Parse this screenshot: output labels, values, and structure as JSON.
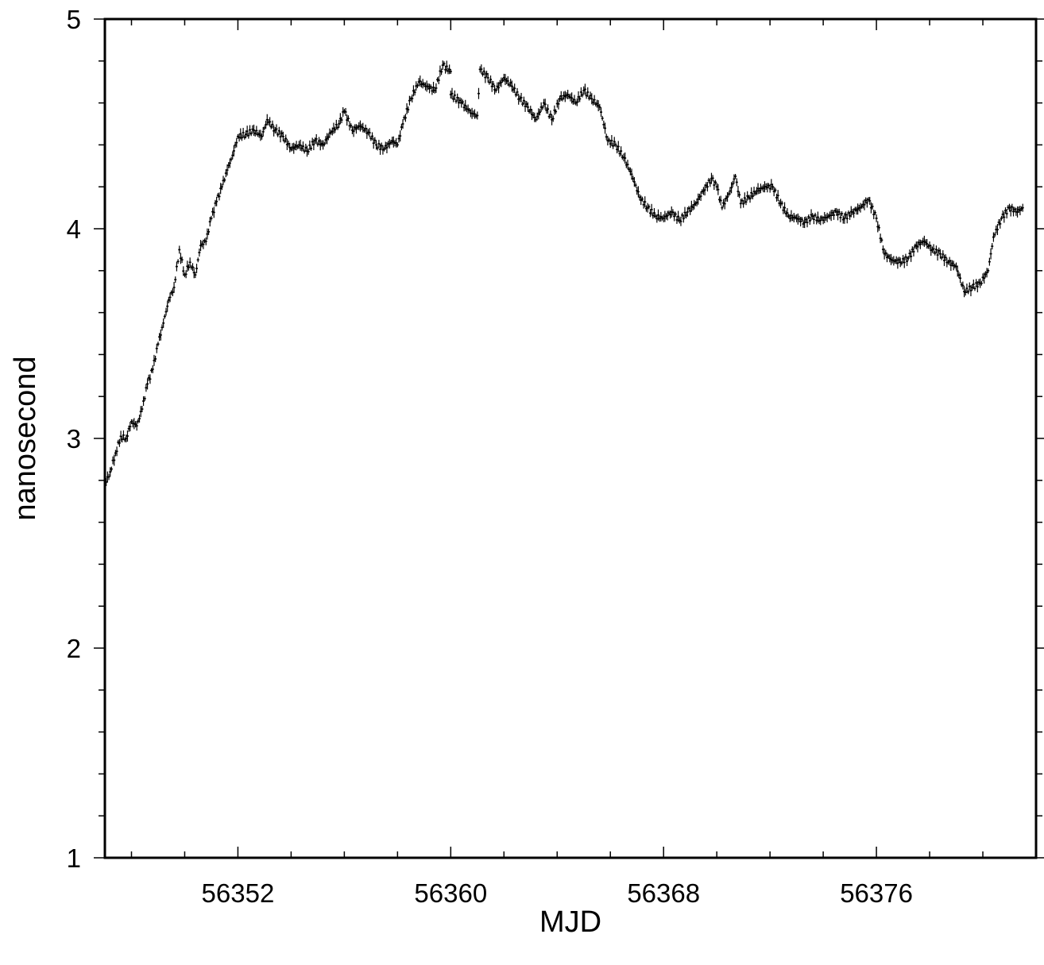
{
  "chart_data": {
    "type": "scatter",
    "title": "",
    "xlabel": "MJD",
    "ylabel": "nanosecond",
    "xlim": [
      56347,
      56382
    ],
    "ylim": [
      1,
      5
    ],
    "xticks": [
      56352,
      56360,
      56368,
      56376
    ],
    "xtick_labels": [
      "56352",
      "56360",
      "56368",
      "56376"
    ],
    "x_minor_step": 2,
    "yticks": [
      1,
      2,
      3,
      4,
      5
    ],
    "ytick_labels": [
      "1",
      "2",
      "3",
      "4",
      "5"
    ],
    "y_minor_step": 0.2,
    "grid": false,
    "marker": "small vertical error-bar ticks",
    "series": [
      {
        "color": "#000000",
        "points": [
          [
            56347.0,
            2.78
          ],
          [
            56347.2,
            2.84
          ],
          [
            56347.4,
            2.93
          ],
          [
            56347.6,
            3.01
          ],
          [
            56347.8,
            3.0
          ],
          [
            56348.0,
            3.08
          ],
          [
            56348.2,
            3.06
          ],
          [
            56348.4,
            3.14
          ],
          [
            56348.6,
            3.26
          ],
          [
            56348.8,
            3.33
          ],
          [
            56349.0,
            3.45
          ],
          [
            56349.2,
            3.55
          ],
          [
            56349.4,
            3.66
          ],
          [
            56349.6,
            3.72
          ],
          [
            56349.8,
            3.9
          ],
          [
            56350.0,
            3.78
          ],
          [
            56350.2,
            3.84
          ],
          [
            56350.4,
            3.78
          ],
          [
            56350.6,
            3.92
          ],
          [
            56350.8,
            3.94
          ],
          [
            56351.0,
            4.05
          ],
          [
            56351.2,
            4.13
          ],
          [
            56351.4,
            4.2
          ],
          [
            56351.6,
            4.28
          ],
          [
            56351.8,
            4.35
          ],
          [
            56352.0,
            4.44
          ],
          [
            56352.3,
            4.45
          ],
          [
            56352.6,
            4.47
          ],
          [
            56352.9,
            4.44
          ],
          [
            56353.1,
            4.52
          ],
          [
            56353.4,
            4.47
          ],
          [
            56353.7,
            4.44
          ],
          [
            56354.0,
            4.38
          ],
          [
            56354.3,
            4.4
          ],
          [
            56354.6,
            4.37
          ],
          [
            56354.9,
            4.42
          ],
          [
            56355.2,
            4.4
          ],
          [
            56355.5,
            4.46
          ],
          [
            56355.8,
            4.5
          ],
          [
            56356.0,
            4.56
          ],
          [
            56356.3,
            4.47
          ],
          [
            56356.6,
            4.49
          ],
          [
            56356.9,
            4.46
          ],
          [
            56357.2,
            4.4
          ],
          [
            56357.5,
            4.38
          ],
          [
            56357.8,
            4.42
          ],
          [
            56358.0,
            4.4
          ],
          [
            56358.2,
            4.5
          ],
          [
            56358.5,
            4.62
          ],
          [
            56358.8,
            4.7
          ],
          [
            56359.1,
            4.68
          ],
          [
            56359.4,
            4.66
          ],
          [
            56359.7,
            4.78
          ],
          [
            56360.0,
            4.75
          ],
          [
            56360.0,
            4.64
          ],
          [
            56360.4,
            4.6
          ],
          [
            56360.8,
            4.55
          ],
          [
            56361.0,
            4.54
          ],
          [
            56361.1,
            4.76
          ],
          [
            56361.4,
            4.72
          ],
          [
            56361.7,
            4.66
          ],
          [
            56362.0,
            4.72
          ],
          [
            56362.3,
            4.68
          ],
          [
            56362.6,
            4.62
          ],
          [
            56362.9,
            4.58
          ],
          [
            56363.2,
            4.52
          ],
          [
            56363.5,
            4.6
          ],
          [
            56363.8,
            4.52
          ],
          [
            56364.1,
            4.62
          ],
          [
            56364.4,
            4.64
          ],
          [
            56364.7,
            4.6
          ],
          [
            56365.0,
            4.66
          ],
          [
            56365.3,
            4.62
          ],
          [
            56365.6,
            4.58
          ],
          [
            56365.9,
            4.42
          ],
          [
            56366.2,
            4.4
          ],
          [
            56366.5,
            4.34
          ],
          [
            56366.8,
            4.26
          ],
          [
            56367.1,
            4.15
          ],
          [
            56367.4,
            4.1
          ],
          [
            56367.7,
            4.06
          ],
          [
            56368.0,
            4.05
          ],
          [
            56368.3,
            4.08
          ],
          [
            56368.6,
            4.04
          ],
          [
            56368.9,
            4.08
          ],
          [
            56369.2,
            4.12
          ],
          [
            56369.5,
            4.18
          ],
          [
            56369.8,
            4.24
          ],
          [
            56370.0,
            4.2
          ],
          [
            56370.2,
            4.1
          ],
          [
            56370.5,
            4.18
          ],
          [
            56370.7,
            4.25
          ],
          [
            56370.9,
            4.12
          ],
          [
            56371.2,
            4.15
          ],
          [
            56371.5,
            4.18
          ],
          [
            56371.8,
            4.2
          ],
          [
            56372.1,
            4.2
          ],
          [
            56372.4,
            4.12
          ],
          [
            56372.7,
            4.06
          ],
          [
            56373.0,
            4.05
          ],
          [
            56373.3,
            4.03
          ],
          [
            56373.6,
            4.06
          ],
          [
            56373.9,
            4.04
          ],
          [
            56374.2,
            4.06
          ],
          [
            56374.5,
            4.08
          ],
          [
            56374.8,
            4.05
          ],
          [
            56375.1,
            4.08
          ],
          [
            56375.4,
            4.1
          ],
          [
            56375.7,
            4.14
          ],
          [
            56376.0,
            4.05
          ],
          [
            56376.3,
            3.88
          ],
          [
            56376.6,
            3.85
          ],
          [
            56376.9,
            3.84
          ],
          [
            56377.2,
            3.86
          ],
          [
            56377.5,
            3.92
          ],
          [
            56377.8,
            3.94
          ],
          [
            56378.1,
            3.9
          ],
          [
            56378.4,
            3.88
          ],
          [
            56378.7,
            3.84
          ],
          [
            56379.0,
            3.82
          ],
          [
            56379.3,
            3.7
          ],
          [
            56379.6,
            3.72
          ],
          [
            56379.9,
            3.74
          ],
          [
            56380.2,
            3.8
          ],
          [
            56380.4,
            3.96
          ],
          [
            56380.7,
            4.05
          ],
          [
            56381.0,
            4.1
          ],
          [
            56381.3,
            4.08
          ],
          [
            56381.5,
            4.1
          ]
        ]
      }
    ]
  }
}
